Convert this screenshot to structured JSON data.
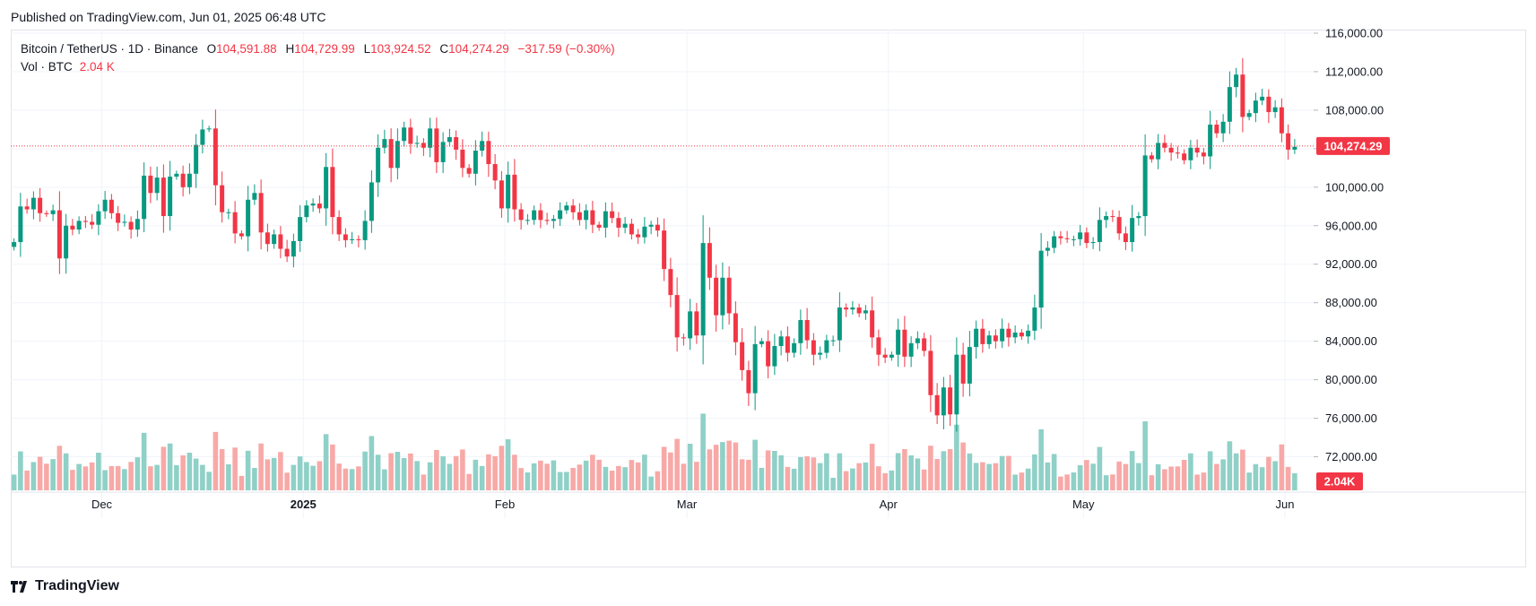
{
  "header": {
    "published_text": "Published on TradingView.com, Jun 01, 2025 06:48 UTC"
  },
  "legend": {
    "symbol": "Bitcoin / TetherUS · 1D · Binance",
    "open_label": "O",
    "open": "104,591.88",
    "high_label": "H",
    "high": "104,729.99",
    "low_label": "L",
    "low": "103,924.52",
    "close_label": "C",
    "close": "104,274.29",
    "change": "−317.59 (−0.30%)",
    "vol_label": "Vol · BTC",
    "vol_value": "2.04 K"
  },
  "footer": {
    "brand": "TradingView",
    "brand_icon": "tradingview-logo-icon"
  },
  "colors": {
    "up": "#089981",
    "down": "#f23645",
    "vol_up": "#8fd0c7",
    "vol_down": "#f7a9a7",
    "grid": "#f0f3fa"
  },
  "chart_data": {
    "type": "candlestick",
    "symbol": "BTCUSDT",
    "interval": "1D",
    "x_range": [
      "2024-11-17",
      "2025-06-01"
    ],
    "ylim": [
      70000,
      116000
    ],
    "y_ticks": [
      {
        "value": 72000,
        "label": "72,000.00"
      },
      {
        "value": 76000,
        "label": "76,000.00"
      },
      {
        "value": 80000,
        "label": "80,000.00"
      },
      {
        "value": 84000,
        "label": "84,000.00"
      },
      {
        "value": 88000,
        "label": "88,000.00"
      },
      {
        "value": 92000,
        "label": "92,000.00"
      },
      {
        "value": 96000,
        "label": "96,000.00"
      },
      {
        "value": 100000,
        "label": "100,000.00"
      },
      {
        "value": 104000,
        "label": "104,000.00"
      },
      {
        "value": 108000,
        "label": "108,000.00"
      },
      {
        "value": 112000,
        "label": "112,000.00"
      },
      {
        "value": 116000,
        "label": "116,000.00"
      }
    ],
    "x_ticks": [
      {
        "date": "2024-12-01",
        "label": "Dec",
        "bold": false
      },
      {
        "date": "2025-01-01",
        "label": "2025",
        "bold": true
      },
      {
        "date": "2025-02-01",
        "label": "Feb",
        "bold": false
      },
      {
        "date": "2025-03-01",
        "label": "Mar",
        "bold": false
      },
      {
        "date": "2025-04-01",
        "label": "Apr",
        "bold": false
      },
      {
        "date": "2025-05-01",
        "label": "May",
        "bold": false
      },
      {
        "date": "2025-06-01",
        "label": "Jun",
        "bold": false
      }
    ],
    "last_price": 104274.29,
    "last_price_label": "104,274.29",
    "last_volume_label": "2.04K",
    "closes": [
      94300,
      98000,
      97700,
      98900,
      97300,
      97200,
      97600,
      92600,
      96000,
      95600,
      96500,
      96400,
      96100,
      97500,
      98700,
      97300,
      96300,
      96400,
      95600,
      96700,
      101200,
      99400,
      101000,
      97000,
      101100,
      101400,
      100000,
      101400,
      104400,
      106000,
      106100,
      100200,
      97400,
      97400,
      95200,
      94900,
      98700,
      99400,
      95300,
      94100,
      95100,
      93600,
      92800,
      94400,
      96900,
      98100,
      98300,
      97800,
      102100,
      96900,
      95100,
      94500,
      94600,
      94500,
      96500,
      100500,
      104100,
      105000,
      102000,
      104800,
      106200,
      104500,
      104600,
      104100,
      106100,
      102600,
      104700,
      105200,
      103900,
      102000,
      101400,
      103800,
      104800,
      102400,
      100700,
      97800,
      101300,
      97700,
      96600,
      96600,
      97600,
      96600,
      96500,
      96700,
      97600,
      98100,
      97400,
      96600,
      97600,
      96100,
      95800,
      97500,
      96800,
      95800,
      96200,
      95100,
      94800,
      95900,
      96100,
      95500,
      91500,
      88800,
      84400,
      84300,
      87100,
      84600,
      94200,
      90600,
      86700,
      90600,
      86900,
      83900,
      81000,
      78600,
      83700,
      84000,
      81400,
      83500,
      84500,
      82800,
      83800,
      86200,
      84100,
      82600,
      82800,
      84100,
      84100,
      87500,
      87300,
      87500,
      86900,
      87200,
      84400,
      82600,
      82300,
      82600,
      85200,
      82400,
      83800,
      84300,
      83000,
      78400,
      76300,
      79200,
      76400,
      82600,
      79600,
      83400,
      85300,
      83700,
      84600,
      84000,
      85300,
      84400,
      84900,
      84500,
      85100,
      87500,
      93400,
      93700,
      94900,
      94700,
      94600,
      94600,
      95300,
      94200,
      94300,
      96600,
      97000,
      96900,
      95200,
      94300,
      96800,
      97000,
      103300,
      102900,
      104600,
      104100,
      103600,
      103500,
      102800,
      104100,
      103600,
      103200,
      106500,
      105600,
      106800,
      110400,
      111700,
      107300,
      107700,
      109000,
      109400,
      107800,
      108300,
      105600,
      103900,
      104200
    ]
  }
}
